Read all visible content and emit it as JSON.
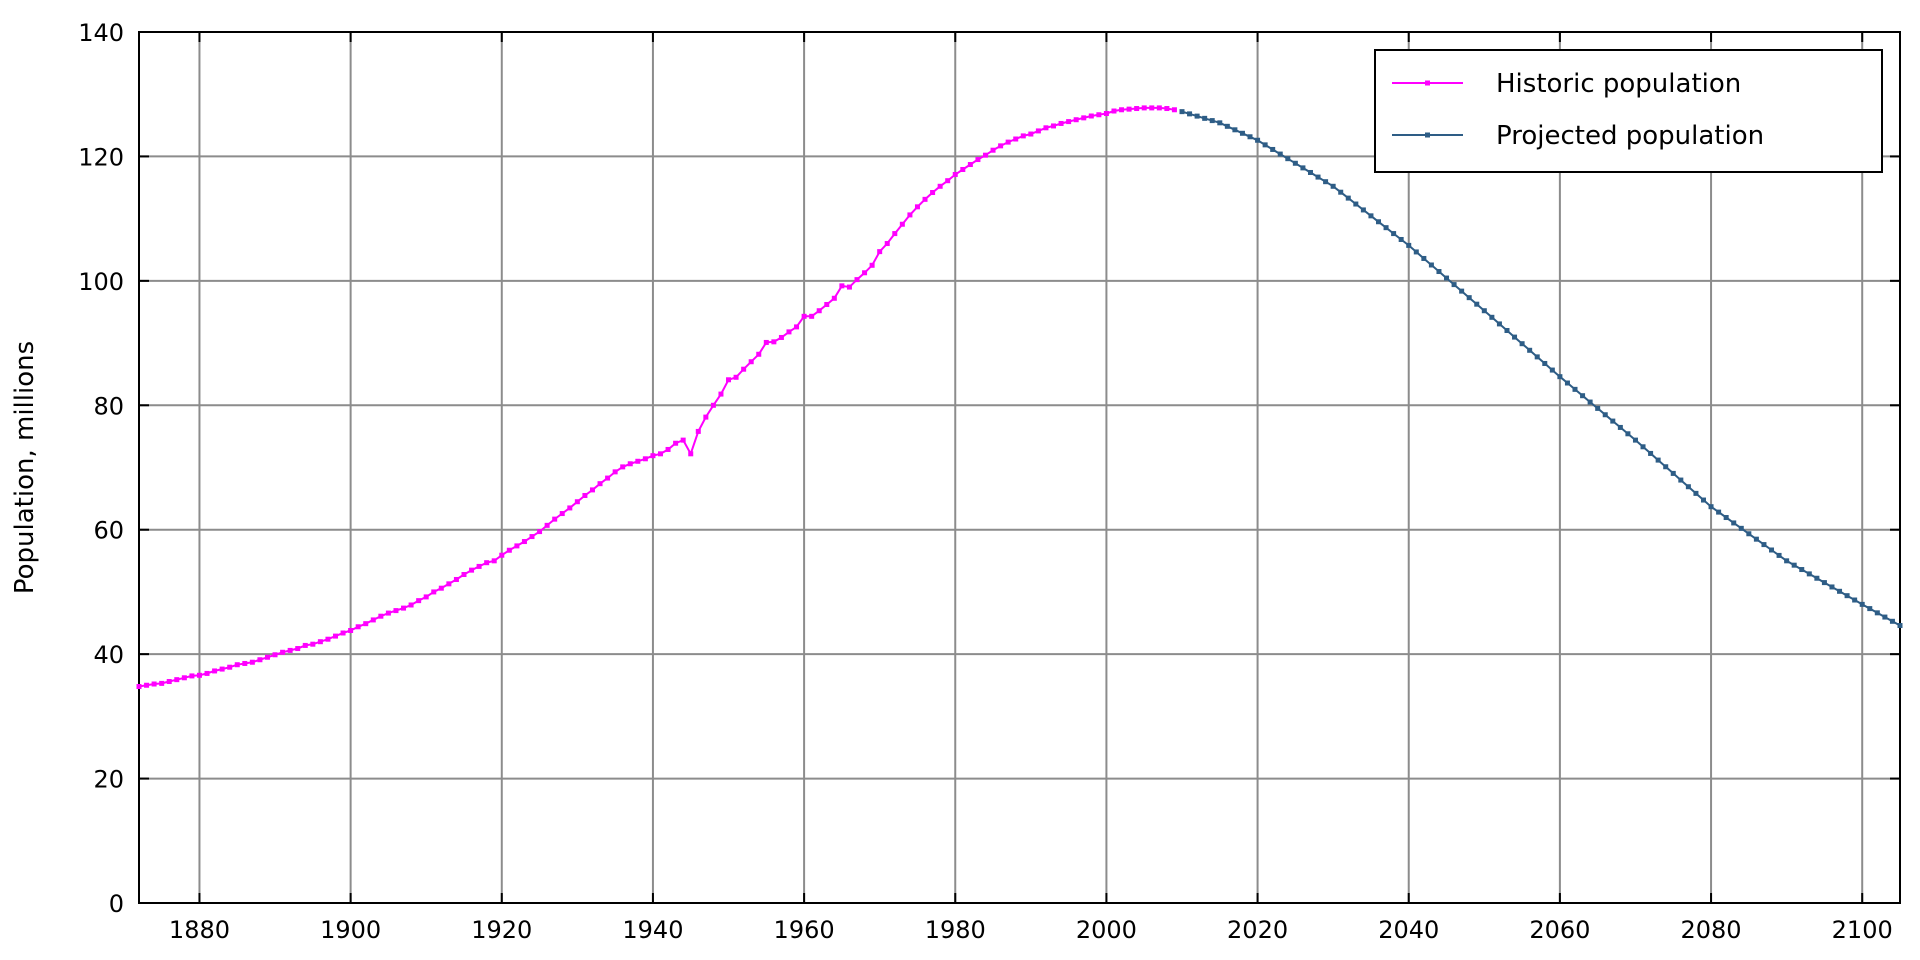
{
  "chart_data": {
    "type": "line",
    "title": "",
    "xlabel": "",
    "ylabel": "Population, millions",
    "xlim": [
      1872,
      2105
    ],
    "ylim": [
      0,
      140
    ],
    "x_ticks": [
      1880,
      1900,
      1920,
      1940,
      1960,
      1980,
      2000,
      2020,
      2040,
      2060,
      2080,
      2100
    ],
    "y_ticks": [
      0,
      20,
      40,
      60,
      80,
      100,
      120,
      140
    ],
    "grid": true,
    "legend_position": "top-right",
    "series": [
      {
        "name": "Historic population",
        "color": "#ff00ff",
        "points": [
          [
            1872,
            34.8
          ],
          [
            1873,
            35.0
          ],
          [
            1874,
            35.2
          ],
          [
            1875,
            35.3
          ],
          [
            1876,
            35.6
          ],
          [
            1877,
            35.9
          ],
          [
            1878,
            36.2
          ],
          [
            1879,
            36.5
          ],
          [
            1880,
            36.6
          ],
          [
            1881,
            36.9
          ],
          [
            1882,
            37.3
          ],
          [
            1883,
            37.6
          ],
          [
            1884,
            37.9
          ],
          [
            1885,
            38.3
          ],
          [
            1886,
            38.5
          ],
          [
            1887,
            38.7
          ],
          [
            1888,
            39.1
          ],
          [
            1889,
            39.5
          ],
          [
            1890,
            39.9
          ],
          [
            1891,
            40.3
          ],
          [
            1892,
            40.6
          ],
          [
            1893,
            40.9
          ],
          [
            1894,
            41.4
          ],
          [
            1895,
            41.6
          ],
          [
            1896,
            42.0
          ],
          [
            1897,
            42.4
          ],
          [
            1898,
            42.9
          ],
          [
            1899,
            43.4
          ],
          [
            1900,
            43.8
          ],
          [
            1901,
            44.4
          ],
          [
            1902,
            44.9
          ],
          [
            1903,
            45.5
          ],
          [
            1904,
            46.1
          ],
          [
            1905,
            46.6
          ],
          [
            1906,
            47.0
          ],
          [
            1907,
            47.4
          ],
          [
            1908,
            47.9
          ],
          [
            1909,
            48.6
          ],
          [
            1910,
            49.2
          ],
          [
            1911,
            50.0
          ],
          [
            1912,
            50.6
          ],
          [
            1913,
            51.3
          ],
          [
            1914,
            52.0
          ],
          [
            1915,
            52.8
          ],
          [
            1916,
            53.5
          ],
          [
            1917,
            54.1
          ],
          [
            1918,
            54.7
          ],
          [
            1919,
            55.0
          ],
          [
            1920,
            55.9
          ],
          [
            1921,
            56.7
          ],
          [
            1922,
            57.4
          ],
          [
            1923,
            58.1
          ],
          [
            1924,
            58.9
          ],
          [
            1925,
            59.7
          ],
          [
            1926,
            60.7
          ],
          [
            1927,
            61.7
          ],
          [
            1928,
            62.6
          ],
          [
            1929,
            63.5
          ],
          [
            1930,
            64.5
          ],
          [
            1931,
            65.5
          ],
          [
            1932,
            66.4
          ],
          [
            1933,
            67.4
          ],
          [
            1934,
            68.3
          ],
          [
            1935,
            69.3
          ],
          [
            1936,
            70.1
          ],
          [
            1937,
            70.6
          ],
          [
            1938,
            71.0
          ],
          [
            1939,
            71.4
          ],
          [
            1940,
            71.9
          ],
          [
            1941,
            72.2
          ],
          [
            1942,
            72.9
          ],
          [
            1943,
            73.9
          ],
          [
            1944,
            74.4
          ],
          [
            1945,
            72.2
          ],
          [
            1946,
            75.8
          ],
          [
            1947,
            78.1
          ],
          [
            1948,
            80.0
          ],
          [
            1949,
            81.8
          ],
          [
            1950,
            84.1
          ],
          [
            1951,
            84.5
          ],
          [
            1952,
            85.8
          ],
          [
            1953,
            87.0
          ],
          [
            1954,
            88.2
          ],
          [
            1955,
            90.1
          ],
          [
            1956,
            90.2
          ],
          [
            1957,
            90.9
          ],
          [
            1958,
            91.8
          ],
          [
            1959,
            92.6
          ],
          [
            1960,
            94.3
          ],
          [
            1961,
            94.3
          ],
          [
            1962,
            95.2
          ],
          [
            1963,
            96.2
          ],
          [
            1964,
            97.2
          ],
          [
            1965,
            99.2
          ],
          [
            1966,
            99.0
          ],
          [
            1967,
            100.2
          ],
          [
            1968,
            101.3
          ],
          [
            1969,
            102.5
          ],
          [
            1970,
            104.7
          ],
          [
            1971,
            106.0
          ],
          [
            1972,
            107.6
          ],
          [
            1973,
            109.1
          ],
          [
            1974,
            110.6
          ],
          [
            1975,
            111.9
          ],
          [
            1976,
            113.1
          ],
          [
            1977,
            114.2
          ],
          [
            1978,
            115.2
          ],
          [
            1979,
            116.1
          ],
          [
            1980,
            117.1
          ],
          [
            1981,
            117.9
          ],
          [
            1982,
            118.7
          ],
          [
            1983,
            119.5
          ],
          [
            1984,
            120.2
          ],
          [
            1985,
            121.0
          ],
          [
            1986,
            121.7
          ],
          [
            1987,
            122.3
          ],
          [
            1988,
            122.8
          ],
          [
            1989,
            123.3
          ],
          [
            1990,
            123.6
          ],
          [
            1991,
            124.1
          ],
          [
            1992,
            124.6
          ],
          [
            1993,
            124.9
          ],
          [
            1994,
            125.3
          ],
          [
            1995,
            125.6
          ],
          [
            1996,
            125.9
          ],
          [
            1997,
            126.2
          ],
          [
            1998,
            126.5
          ],
          [
            1999,
            126.7
          ],
          [
            2000,
            126.9
          ],
          [
            2001,
            127.3
          ],
          [
            2002,
            127.5
          ],
          [
            2003,
            127.6
          ],
          [
            2004,
            127.7
          ],
          [
            2005,
            127.8
          ],
          [
            2006,
            127.8
          ],
          [
            2007,
            127.8
          ],
          [
            2008,
            127.7
          ],
          [
            2009,
            127.5
          ]
        ]
      },
      {
        "name": "Projected population",
        "color": "#2e5d86",
        "points": [
          [
            2010,
            127.2
          ],
          [
            2015,
            125.4
          ],
          [
            2020,
            122.6
          ],
          [
            2030,
            115.2
          ],
          [
            2040,
            105.7
          ],
          [
            2050,
            95.2
          ],
          [
            2060,
            84.6
          ],
          [
            2070,
            74.4
          ],
          [
            2080,
            63.7
          ],
          [
            2090,
            55.0
          ],
          [
            2100,
            48.0
          ],
          [
            2105,
            44.6
          ]
        ]
      }
    ]
  }
}
